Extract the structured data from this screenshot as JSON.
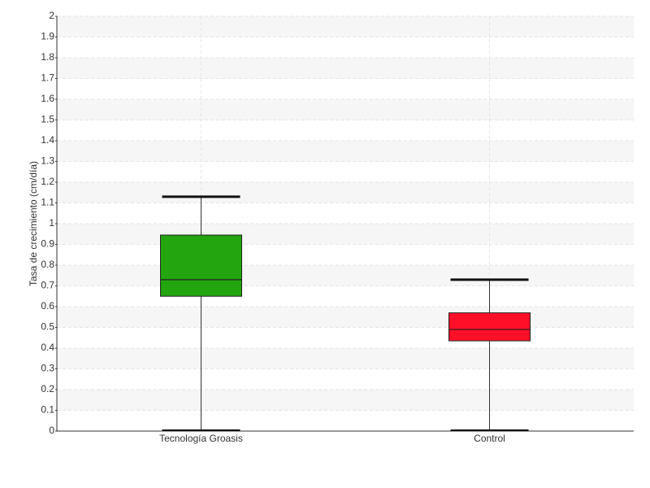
{
  "chart_data": {
    "type": "box",
    "ylabel": "Tasa de crecimiento (cm/día)",
    "categories": [
      "Tecnología Groasis",
      "Control"
    ],
    "boxes": [
      {
        "min": 0,
        "q1": 0.65,
        "median": 0.73,
        "q3": 0.945,
        "max": 1.13,
        "color": "#22a50f"
      },
      {
        "min": 0,
        "q1": 0.435,
        "median": 0.49,
        "q3": 0.57,
        "max": 0.73,
        "color": "#ff1028"
      }
    ],
    "ylim": [
      0,
      2
    ],
    "yticks": [
      0,
      0.1,
      0.2,
      0.3,
      0.4,
      0.5,
      0.6,
      0.7,
      0.8,
      0.9,
      1,
      1.1,
      1.2,
      1.3,
      1.4,
      1.5,
      1.6,
      1.7,
      1.8,
      1.9,
      2
    ],
    "grid": true
  }
}
